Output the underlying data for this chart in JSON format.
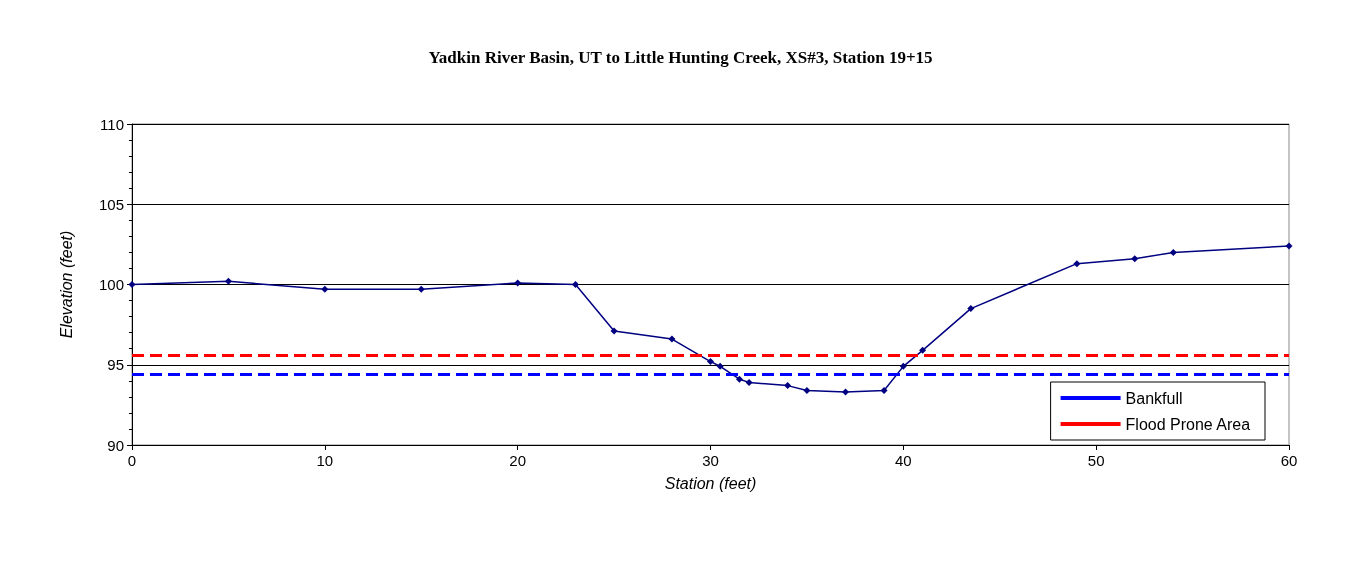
{
  "chart_data": {
    "type": "line",
    "title": "Yadkin River Basin, UT to Little Hunting Creek, XS#3, Station 19+15",
    "xlabel": "Station (feet)",
    "ylabel": "Elevation (feet)",
    "x": [
      0,
      5,
      10,
      15,
      20,
      23,
      25,
      28,
      30,
      30.5,
      31.5,
      32,
      34,
      35,
      37,
      39,
      40,
      41,
      43.5,
      49,
      52,
      54,
      60
    ],
    "series": [
      {
        "color": "#000080",
        "values": [
          100,
          100.2,
          99.7,
          99.7,
          100.1,
          100,
          97.1,
          96.6,
          95.2,
          94.9,
          94.1,
          93.9,
          93.7,
          93.4,
          93.3,
          93.4,
          94.9,
          95.9,
          98.5,
          101.3,
          101.6,
          102,
          102.4
        ]
      }
    ],
    "xlim": [
      0,
      60
    ],
    "xticks": [
      0,
      10,
      20,
      30,
      40,
      50,
      60
    ],
    "ylim": [
      90,
      110
    ],
    "yticks": [
      90,
      95,
      100,
      105,
      110
    ],
    "ref_lines": [
      {
        "axis": "y",
        "value": 94.4,
        "label": "Bankfull",
        "color": "#0000ff",
        "line_style": "dashed"
      },
      {
        "axis": "y",
        "value": 95.6,
        "label": "Flood Prone Area",
        "color": "#ff0000",
        "line_style": "dashed"
      }
    ],
    "grid": "y",
    "legend": "bottom right",
    "marker": "diamond",
    "line_style": "solid"
  }
}
